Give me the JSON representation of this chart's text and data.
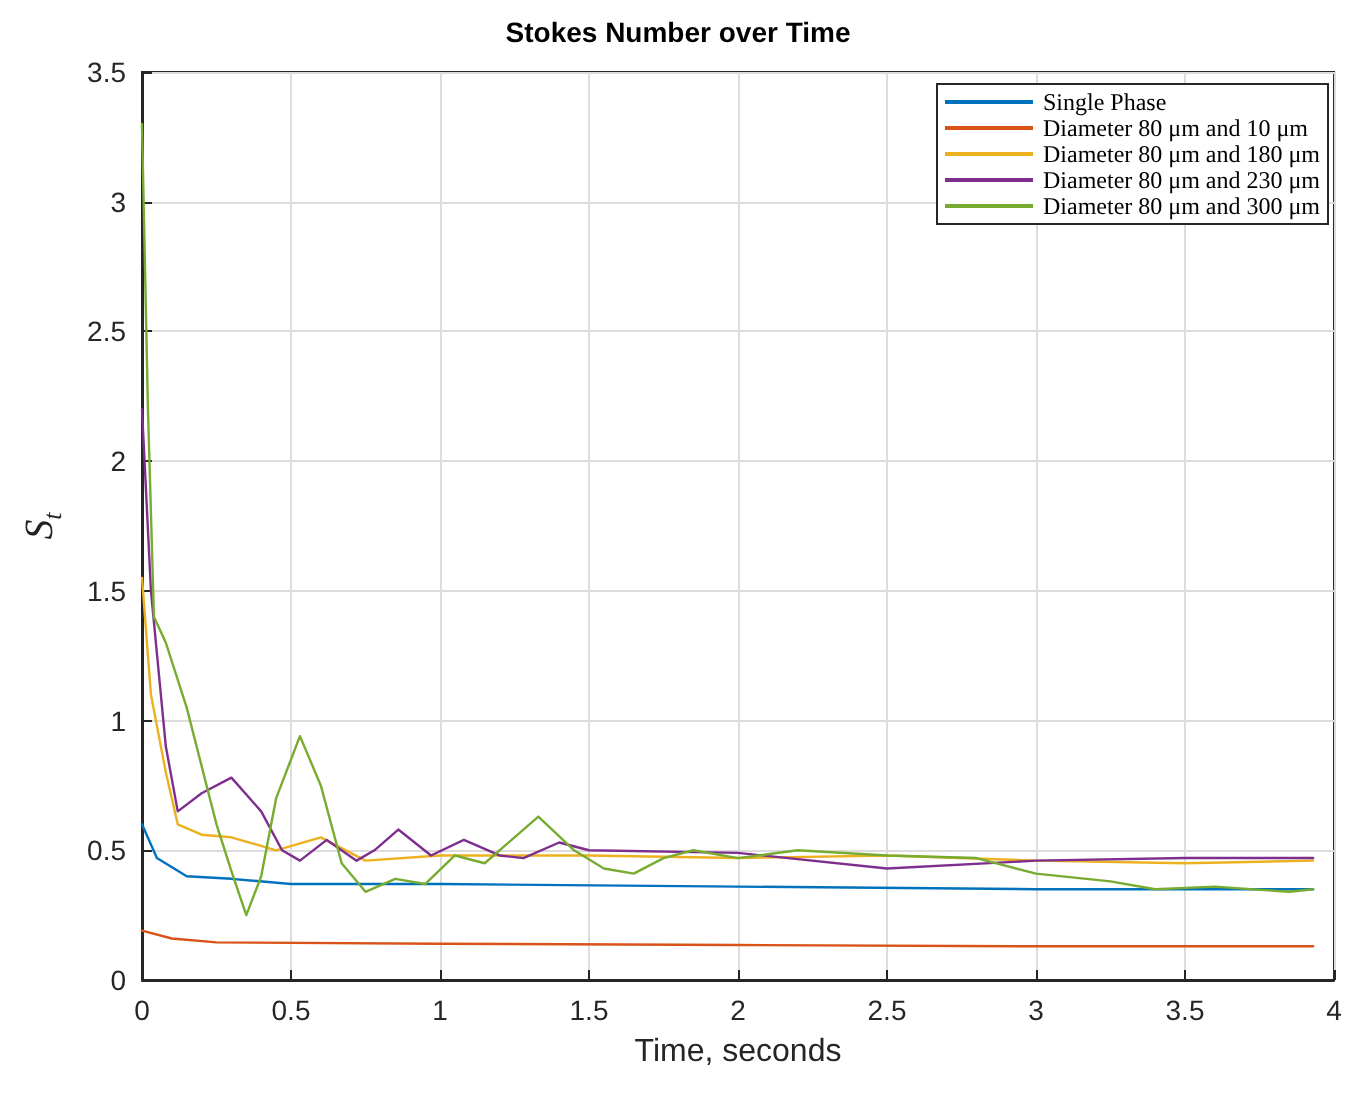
{
  "chart_data": {
    "type": "line",
    "title": "Stokes Number over Time",
    "xlabel": "Time, seconds",
    "ylabel": "S$_{t}$",
    "xlim": [
      0,
      4
    ],
    "xticks": [
      0,
      0.5,
      1,
      1.5,
      2,
      2.5,
      3,
      3.5,
      4
    ],
    "ylim": [
      0,
      3.5
    ],
    "yticks": [
      0,
      0.5,
      1,
      1.5,
      2,
      2.5,
      3,
      3.5
    ],
    "grid": true,
    "legend": "top right",
    "marker": "none",
    "line_style": "solid",
    "series": [
      {
        "name": "Single Phase",
        "color": "#0072bd",
        "x": [
          0,
          0.05,
          0.15,
          0.3,
          0.5,
          1,
          2,
          3,
          3.93
        ],
        "values": [
          0.6,
          0.47,
          0.4,
          0.39,
          0.37,
          0.37,
          0.36,
          0.35,
          0.35
        ]
      },
      {
        "name": "Diameter 80 μm and 10 μm",
        "color": "#d95319",
        "x": [
          0,
          0.1,
          0.25,
          1,
          2,
          3,
          3.93
        ],
        "values": [
          0.19,
          0.16,
          0.145,
          0.14,
          0.135,
          0.13,
          0.13
        ]
      },
      {
        "name": "Diameter 80 μm and 180 μm",
        "color": "#edb120",
        "x": [
          0,
          0.03,
          0.08,
          0.12,
          0.2,
          0.3,
          0.45,
          0.6,
          0.75,
          1,
          1.5,
          2,
          2.5,
          3,
          3.5,
          3.93
        ],
        "values": [
          1.55,
          1.1,
          0.8,
          0.6,
          0.56,
          0.55,
          0.5,
          0.55,
          0.46,
          0.48,
          0.48,
          0.47,
          0.48,
          0.46,
          0.45,
          0.46
        ]
      },
      {
        "name": "Diameter 80 μm and 230 μm",
        "color": "#7e2f8e",
        "x": [
          0,
          0.03,
          0.08,
          0.12,
          0.2,
          0.3,
          0.4,
          0.47,
          0.53,
          0.62,
          0.72,
          0.78,
          0.86,
          0.97,
          1.08,
          1.2,
          1.28,
          1.4,
          1.5,
          2,
          2.5,
          3,
          3.5,
          3.93
        ],
        "values": [
          2.2,
          1.5,
          0.9,
          0.65,
          0.72,
          0.78,
          0.65,
          0.5,
          0.46,
          0.54,
          0.46,
          0.5,
          0.58,
          0.48,
          0.54,
          0.48,
          0.47,
          0.53,
          0.5,
          0.49,
          0.43,
          0.46,
          0.47,
          0.47
        ]
      },
      {
        "name": "Diameter 80 μm and 300 μm",
        "color": "#77ac30",
        "x": [
          0,
          0.02,
          0.04,
          0.08,
          0.15,
          0.25,
          0.3,
          0.35,
          0.4,
          0.45,
          0.53,
          0.6,
          0.67,
          0.75,
          0.85,
          0.95,
          1.05,
          1.15,
          1.25,
          1.33,
          1.45,
          1.55,
          1.65,
          1.75,
          1.85,
          2,
          2.2,
          2.5,
          2.8,
          3,
          3.25,
          3.4,
          3.6,
          3.85,
          3.93
        ],
        "values": [
          3.3,
          2.2,
          1.4,
          1.3,
          1.05,
          0.6,
          0.42,
          0.25,
          0.4,
          0.7,
          0.94,
          0.75,
          0.45,
          0.34,
          0.39,
          0.37,
          0.48,
          0.45,
          0.55,
          0.63,
          0.5,
          0.43,
          0.41,
          0.47,
          0.5,
          0.47,
          0.5,
          0.48,
          0.47,
          0.41,
          0.38,
          0.35,
          0.36,
          0.34,
          0.35
        ]
      }
    ]
  }
}
